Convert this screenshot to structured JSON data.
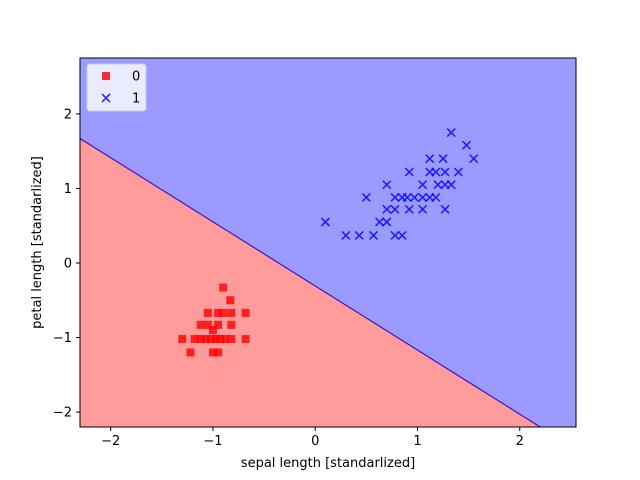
{
  "chart_data": {
    "type": "scatter",
    "title": "",
    "xlabel": "sepal length [standarlized]",
    "ylabel": "petal length [standarlized]",
    "xlim": [
      -2.3,
      2.55
    ],
    "ylim": [
      -2.2,
      2.75
    ],
    "xticks": [
      -2,
      -1,
      0,
      1,
      2
    ],
    "yticks": [
      -2,
      -1,
      0,
      1,
      2
    ],
    "xtick_labels": [
      "−2",
      "−1",
      "0",
      "1",
      "2"
    ],
    "ytick_labels": [
      "−2",
      "−1",
      "0",
      "1",
      "2"
    ],
    "grid": false,
    "legend_position": "top-left",
    "decision_boundary": {
      "points": [
        [
          -2.3,
          1.67
        ],
        [
          2.2,
          -2.2
        ]
      ],
      "region_colors": {
        "0": "#ff9b9b",
        "1": "#9b9bff"
      },
      "line_color": "#3a14c8"
    },
    "series": [
      {
        "name": "0",
        "marker": "square",
        "color": "#ff0000",
        "points": [
          [
            -0.9,
            -0.33
          ],
          [
            -0.83,
            -0.5
          ],
          [
            -1.05,
            -0.67
          ],
          [
            -0.95,
            -0.67
          ],
          [
            -0.9,
            -0.67
          ],
          [
            -0.82,
            -0.67
          ],
          [
            -0.68,
            -0.67
          ],
          [
            -1.05,
            -0.83
          ],
          [
            -0.95,
            -0.83
          ],
          [
            -0.82,
            -0.83
          ],
          [
            -1.3,
            -1.02
          ],
          [
            -1.18,
            -1.02
          ],
          [
            -1.12,
            -1.02
          ],
          [
            -1.07,
            -1.02
          ],
          [
            -1.02,
            -1.02
          ],
          [
            -0.97,
            -1.02
          ],
          [
            -0.93,
            -1.02
          ],
          [
            -0.88,
            -1.02
          ],
          [
            -0.82,
            -1.02
          ],
          [
            -0.68,
            -1.02
          ],
          [
            -1.22,
            -1.2
          ],
          [
            -1.0,
            -1.2
          ],
          [
            -0.95,
            -1.2
          ],
          [
            -1.12,
            -0.83
          ],
          [
            -1.0,
            -0.9
          ]
        ]
      },
      {
        "name": "1",
        "marker": "x",
        "color": "#0000ff",
        "points": [
          [
            1.33,
            1.75
          ],
          [
            1.48,
            1.58
          ],
          [
            1.12,
            1.4
          ],
          [
            1.25,
            1.4
          ],
          [
            1.55,
            1.4
          ],
          [
            0.92,
            1.22
          ],
          [
            1.12,
            1.22
          ],
          [
            1.18,
            1.22
          ],
          [
            1.27,
            1.22
          ],
          [
            1.4,
            1.22
          ],
          [
            0.7,
            1.05
          ],
          [
            1.05,
            1.05
          ],
          [
            1.2,
            1.05
          ],
          [
            1.27,
            1.05
          ],
          [
            1.33,
            1.05
          ],
          [
            0.5,
            0.88
          ],
          [
            0.78,
            0.88
          ],
          [
            0.85,
            0.88
          ],
          [
            0.9,
            0.88
          ],
          [
            0.97,
            0.88
          ],
          [
            1.05,
            0.88
          ],
          [
            1.12,
            0.88
          ],
          [
            1.18,
            0.88
          ],
          [
            0.7,
            0.72
          ],
          [
            0.78,
            0.72
          ],
          [
            0.92,
            0.72
          ],
          [
            1.05,
            0.72
          ],
          [
            1.27,
            0.72
          ],
          [
            0.1,
            0.55
          ],
          [
            0.63,
            0.55
          ],
          [
            0.7,
            0.55
          ],
          [
            0.3,
            0.37
          ],
          [
            0.43,
            0.37
          ],
          [
            0.57,
            0.37
          ],
          [
            0.78,
            0.37
          ],
          [
            0.85,
            0.37
          ]
        ]
      }
    ]
  }
}
